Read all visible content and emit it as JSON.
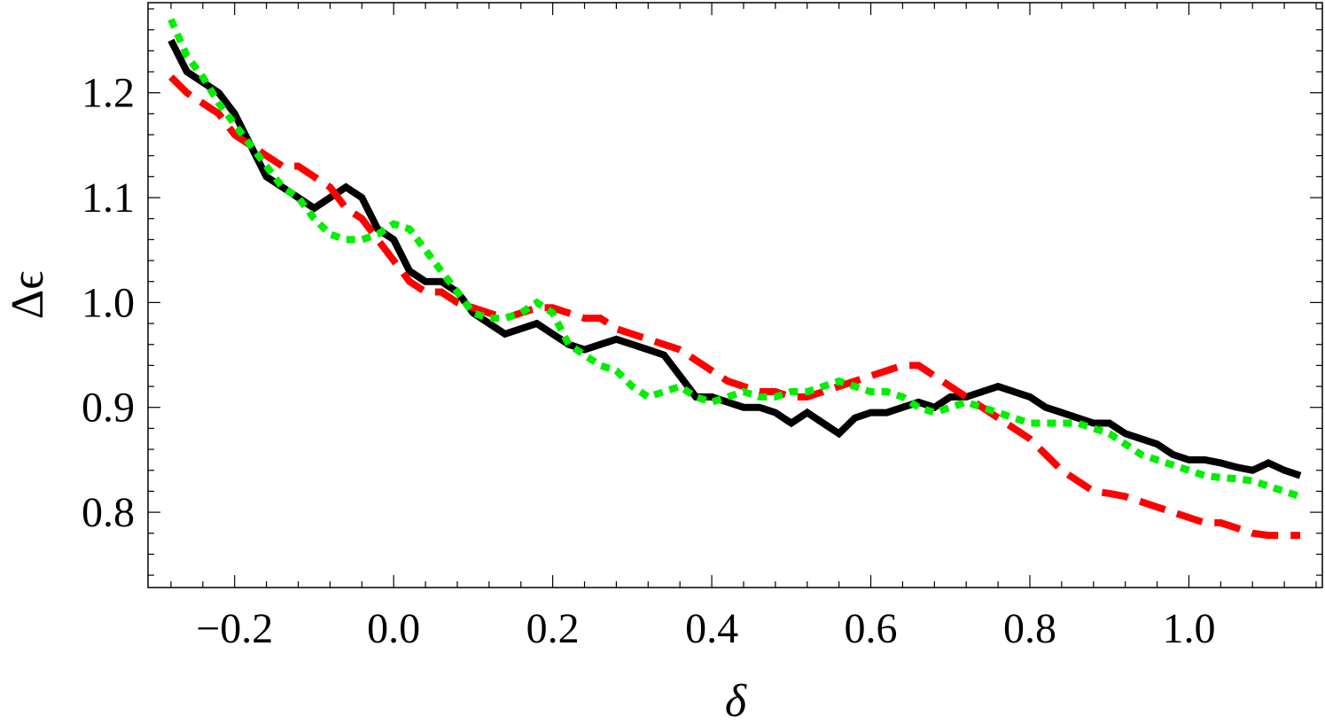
{
  "chart_data": {
    "type": "line",
    "xlabel": "δ",
    "ylabel": "Δϵ",
    "xlim": [
      -0.3,
      1.16
    ],
    "ylim": [
      0.735,
      1.28
    ],
    "xticks": [
      -0.2,
      0.0,
      0.2,
      0.4,
      0.6,
      0.8,
      1.0
    ],
    "xtick_labels": [
      "−0.2",
      "0.0",
      "0.2",
      "0.4",
      "0.6",
      "0.8",
      "1.0"
    ],
    "yticks": [
      0.8,
      0.9,
      1.0,
      1.1,
      1.2
    ],
    "ytick_labels": [
      "0.8",
      "0.9",
      "1.0",
      "1.1",
      "1.2"
    ],
    "grid": false,
    "legend": "none",
    "series": [
      {
        "color": "#000000",
        "style": "solid",
        "x": [
          -0.28,
          -0.26,
          -0.24,
          -0.22,
          -0.2,
          -0.18,
          -0.16,
          -0.14,
          -0.12,
          -0.1,
          -0.08,
          -0.06,
          -0.04,
          -0.02,
          0.0,
          0.02,
          0.04,
          0.06,
          0.08,
          0.1,
          0.12,
          0.14,
          0.16,
          0.18,
          0.2,
          0.22,
          0.24,
          0.26,
          0.28,
          0.3,
          0.32,
          0.34,
          0.36,
          0.38,
          0.4,
          0.42,
          0.44,
          0.46,
          0.48,
          0.5,
          0.52,
          0.54,
          0.56,
          0.58,
          0.6,
          0.62,
          0.64,
          0.66,
          0.68,
          0.7,
          0.72,
          0.74,
          0.76,
          0.78,
          0.8,
          0.82,
          0.84,
          0.86,
          0.88,
          0.9,
          0.92,
          0.94,
          0.96,
          0.98,
          1.0,
          1.02,
          1.04,
          1.06,
          1.08,
          1.1,
          1.12,
          1.14
        ],
        "y": [
          1.25,
          1.22,
          1.21,
          1.2,
          1.18,
          1.15,
          1.12,
          1.11,
          1.1,
          1.09,
          1.1,
          1.11,
          1.1,
          1.07,
          1.06,
          1.03,
          1.02,
          1.02,
          1.01,
          0.99,
          0.98,
          0.97,
          0.975,
          0.98,
          0.97,
          0.96,
          0.955,
          0.96,
          0.965,
          0.96,
          0.955,
          0.95,
          0.93,
          0.91,
          0.91,
          0.905,
          0.9,
          0.9,
          0.895,
          0.885,
          0.895,
          0.885,
          0.875,
          0.89,
          0.895,
          0.895,
          0.9,
          0.905,
          0.9,
          0.91,
          0.91,
          0.915,
          0.92,
          0.915,
          0.91,
          0.9,
          0.895,
          0.89,
          0.885,
          0.885,
          0.875,
          0.87,
          0.865,
          0.855,
          0.85,
          0.85,
          0.847,
          0.843,
          0.84,
          0.847,
          0.84,
          0.835
        ]
      },
      {
        "color": "#ff0000",
        "style": "dashed",
        "x": [
          -0.28,
          -0.26,
          -0.24,
          -0.22,
          -0.2,
          -0.18,
          -0.16,
          -0.14,
          -0.12,
          -0.1,
          -0.08,
          -0.06,
          -0.04,
          -0.02,
          0.0,
          0.02,
          0.04,
          0.06,
          0.08,
          0.1,
          0.12,
          0.14,
          0.16,
          0.18,
          0.2,
          0.22,
          0.24,
          0.26,
          0.28,
          0.3,
          0.32,
          0.34,
          0.36,
          0.38,
          0.4,
          0.42,
          0.44,
          0.46,
          0.48,
          0.5,
          0.52,
          0.54,
          0.56,
          0.58,
          0.6,
          0.62,
          0.64,
          0.66,
          0.68,
          0.7,
          0.72,
          0.74,
          0.76,
          0.78,
          0.8,
          0.82,
          0.84,
          0.86,
          0.88,
          0.9,
          0.92,
          0.94,
          0.96,
          0.98,
          1.0,
          1.02,
          1.04,
          1.06,
          1.08,
          1.1,
          1.12,
          1.14
        ],
        "y": [
          1.215,
          1.2,
          1.19,
          1.18,
          1.16,
          1.15,
          1.14,
          1.13,
          1.13,
          1.12,
          1.11,
          1.09,
          1.08,
          1.06,
          1.04,
          1.02,
          1.01,
          1.01,
          1.0,
          0.995,
          0.99,
          0.985,
          0.99,
          0.995,
          0.995,
          0.99,
          0.985,
          0.985,
          0.975,
          0.97,
          0.965,
          0.96,
          0.955,
          0.945,
          0.935,
          0.925,
          0.92,
          0.915,
          0.915,
          0.91,
          0.91,
          0.915,
          0.92,
          0.925,
          0.93,
          0.935,
          0.94,
          0.94,
          0.93,
          0.92,
          0.91,
          0.9,
          0.89,
          0.88,
          0.87,
          0.855,
          0.84,
          0.83,
          0.82,
          0.818,
          0.815,
          0.81,
          0.805,
          0.8,
          0.795,
          0.79,
          0.79,
          0.785,
          0.78,
          0.778,
          0.778,
          0.778
        ]
      },
      {
        "color": "#00ee00",
        "style": "dotted",
        "x": [
          -0.28,
          -0.26,
          -0.24,
          -0.22,
          -0.2,
          -0.18,
          -0.16,
          -0.14,
          -0.12,
          -0.1,
          -0.08,
          -0.06,
          -0.04,
          -0.02,
          0.0,
          0.02,
          0.04,
          0.06,
          0.08,
          0.1,
          0.12,
          0.14,
          0.16,
          0.18,
          0.2,
          0.22,
          0.24,
          0.26,
          0.28,
          0.3,
          0.32,
          0.34,
          0.36,
          0.38,
          0.4,
          0.42,
          0.44,
          0.46,
          0.48,
          0.5,
          0.52,
          0.54,
          0.56,
          0.58,
          0.6,
          0.62,
          0.64,
          0.66,
          0.68,
          0.7,
          0.72,
          0.74,
          0.76,
          0.78,
          0.8,
          0.82,
          0.84,
          0.86,
          0.88,
          0.9,
          0.92,
          0.94,
          0.96,
          0.98,
          1.0,
          1.02,
          1.04,
          1.06,
          1.08,
          1.1,
          1.12,
          1.14
        ],
        "y": [
          1.27,
          1.235,
          1.215,
          1.19,
          1.17,
          1.15,
          1.13,
          1.11,
          1.1,
          1.08,
          1.065,
          1.06,
          1.06,
          1.065,
          1.075,
          1.07,
          1.05,
          1.03,
          1.01,
          0.99,
          0.985,
          0.985,
          0.99,
          1.0,
          0.99,
          0.96,
          0.95,
          0.94,
          0.935,
          0.92,
          0.91,
          0.915,
          0.92,
          0.91,
          0.905,
          0.91,
          0.915,
          0.91,
          0.91,
          0.915,
          0.915,
          0.92,
          0.925,
          0.92,
          0.915,
          0.915,
          0.91,
          0.9,
          0.895,
          0.9,
          0.905,
          0.9,
          0.895,
          0.89,
          0.885,
          0.885,
          0.885,
          0.885,
          0.88,
          0.875,
          0.865,
          0.855,
          0.85,
          0.845,
          0.84,
          0.835,
          0.833,
          0.832,
          0.83,
          0.825,
          0.82,
          0.815
        ]
      }
    ]
  }
}
